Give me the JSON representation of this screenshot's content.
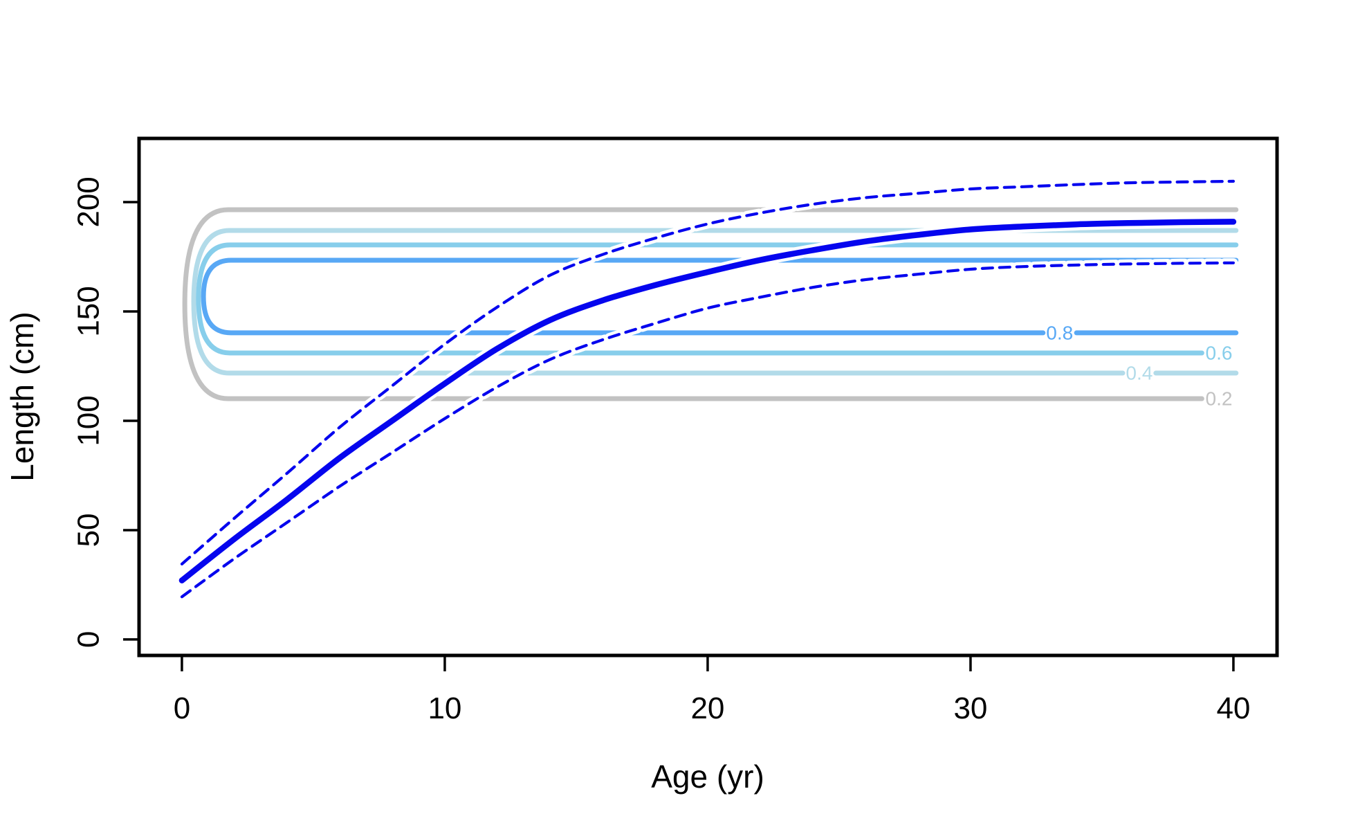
{
  "figure": {
    "background": "#ffffff"
  },
  "chart_data": {
    "type": "line",
    "title": "",
    "xlabel": "Age (yr)",
    "ylabel": "Length (cm)",
    "x_ticks": [
      0,
      10,
      20,
      30,
      40
    ],
    "y_ticks": [
      0,
      50,
      100,
      150,
      200
    ],
    "xlim": [
      -1.63,
      41.66
    ],
    "ylim": [
      -7.3,
      229.1
    ],
    "grid": "off",
    "legend": "none",
    "x": [
      0,
      2,
      4,
      6,
      8,
      10,
      12,
      14,
      16,
      18,
      20,
      22,
      24,
      26,
      28,
      30,
      32,
      34,
      36,
      38,
      40
    ],
    "series": [
      {
        "name": "mean-growth-curve",
        "style": "solid",
        "color": "#0505ee",
        "width": 8.5,
        "values": [
          27,
          46,
          64,
          83,
          100,
          117,
          133,
          146,
          155,
          162,
          168,
          173.5,
          178,
          182,
          185,
          187.5,
          188.8,
          189.8,
          190.4,
          190.8,
          191
        ]
      },
      {
        "name": "upper-confidence-band",
        "style": "dashed",
        "color": "#0505ee",
        "width": 4.2,
        "values": [
          34.5,
          55.5,
          76,
          97,
          116,
          135,
          152,
          166.5,
          176,
          183.5,
          190,
          195,
          199,
          202,
          204,
          206,
          207,
          208,
          208.8,
          209.2,
          209.5
        ]
      },
      {
        "name": "lower-confidence-band",
        "style": "dashed",
        "color": "#0505ee",
        "width": 4.2,
        "values": [
          19.5,
          37,
          53.5,
          70,
          85.5,
          101,
          115.5,
          128,
          137,
          144.5,
          151.5,
          156.5,
          161,
          164.5,
          167,
          169.3,
          170.5,
          171.2,
          171.7,
          172,
          172.2
        ]
      }
    ],
    "contours": [
      {
        "level": "0.2",
        "color": "#c2c2c2",
        "top_cm": 196.5,
        "bottom_cm": 110.1,
        "apex_age": 0.11,
        "corner_age": 1.76,
        "top_end_age": 40.1,
        "bottom_segments": [
          [
            1.76,
            38.8
          ]
        ],
        "label": {
          "text": "0.2",
          "age": 39.45
        }
      },
      {
        "level": "0.4",
        "color": "#b2dbe9",
        "top_cm": 187.0,
        "bottom_cm": 121.8,
        "apex_age": 0.45,
        "corner_age": 1.8,
        "top_end_age": 40.1,
        "bottom_segments": [
          [
            1.8,
            35.79
          ],
          [
            37.05,
            40.1
          ]
        ],
        "label": {
          "text": "0.4",
          "age": 36.42
        }
      },
      {
        "level": "0.6",
        "color": "#87ceeb",
        "top_cm": 180.4,
        "bottom_cm": 131.0,
        "apex_age": 0.63,
        "corner_age": 1.82,
        "top_end_age": 40.1,
        "bottom_segments": [
          [
            1.82,
            38.8
          ]
        ],
        "label": {
          "text": "0.6",
          "age": 39.45
        }
      },
      {
        "level": "0.8",
        "color": "#58a8f5",
        "top_cm": 173.4,
        "bottom_cm": 140.2,
        "apex_age": 0.82,
        "corner_age": 1.87,
        "top_end_age": 40.1,
        "bottom_segments": [
          [
            1.87,
            32.76
          ],
          [
            34.03,
            40.1
          ]
        ],
        "label": {
          "text": "0.8",
          "age": 33.39
        }
      }
    ]
  }
}
